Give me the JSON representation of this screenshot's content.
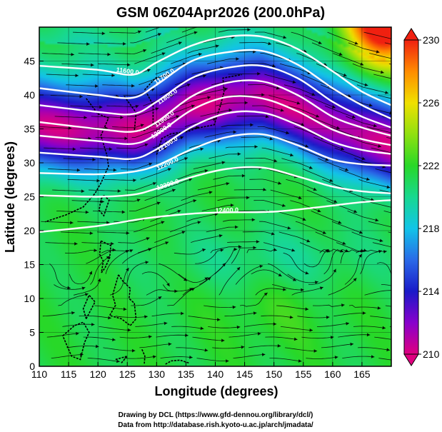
{
  "chart_data": {
    "type": "heatmap",
    "title": "GSM 06Z04Apr2026 (200.0hPa)",
    "xlabel": "Longitude (degrees)",
    "ylabel": "Latitude  (degrees)",
    "xlim": [
      110,
      170
    ],
    "ylim": [
      0,
      50
    ],
    "xticks": [
      "110",
      "115",
      "120",
      "125",
      "130",
      "135",
      "140",
      "145",
      "150",
      "155",
      "160",
      "165"
    ],
    "yticks": [
      "0",
      "5",
      "10",
      "15",
      "20",
      "25",
      "30",
      "35",
      "40",
      "45"
    ],
    "colorbar": {
      "min": 210,
      "max": 230,
      "labels": [
        "230",
        "226",
        "222",
        "218",
        "214",
        "210"
      ],
      "stops": [
        {
          "value": 210,
          "color": "#e0007f"
        },
        {
          "value": 212,
          "color": "#8800cc"
        },
        {
          "value": 214,
          "color": "#1a1ac8"
        },
        {
          "value": 216,
          "color": "#2a6ae8"
        },
        {
          "value": 218,
          "color": "#12c4e8"
        },
        {
          "value": 220,
          "color": "#18d890"
        },
        {
          "value": 222,
          "color": "#28d828"
        },
        {
          "value": 224,
          "color": "#90e010"
        },
        {
          "value": 226,
          "color": "#f0e000"
        },
        {
          "value": 228,
          "color": "#ff8c00"
        },
        {
          "value": 230,
          "color": "#f02010"
        }
      ]
    },
    "field_features": [
      {
        "name": "cold trough",
        "lon": 146,
        "lat": 40,
        "value": 213
      },
      {
        "name": "warm ridge",
        "lon": 168,
        "lat": 49,
        "value": 229
      },
      {
        "name": "tropical warm band",
        "lon": 140,
        "lat": 8,
        "value": 222
      }
    ],
    "contours": [
      {
        "label": "11600.0",
        "label_lon": 125,
        "label_lat": 43.2,
        "points": [
          [
            110,
            44.3
          ],
          [
            120,
            43.7
          ],
          [
            126,
            43.0
          ],
          [
            130,
            44.8
          ],
          [
            136,
            47.3
          ],
          [
            142,
            48.6
          ],
          [
            148,
            48.6
          ],
          [
            154,
            46.8
          ],
          [
            160,
            43.5
          ],
          [
            165,
            40.5
          ],
          [
            170,
            38.5
          ]
        ]
      },
      {
        "label": "11700.0",
        "label_lon": 131.5,
        "label_lat": 42.5,
        "points": [
          [
            110,
            41.0
          ],
          [
            120,
            40.0
          ],
          [
            126,
            39.6
          ],
          [
            130,
            41.5
          ],
          [
            136,
            45.0
          ],
          [
            142,
            46.3
          ],
          [
            148,
            46.5
          ],
          [
            154,
            44.5
          ],
          [
            160,
            41.0
          ],
          [
            165,
            38.5
          ],
          [
            170,
            36.5
          ]
        ]
      },
      {
        "label": "11800.0",
        "label_lon": 132,
        "label_lat": 39.5,
        "points": [
          [
            110,
            38.5
          ],
          [
            120,
            37.5
          ],
          [
            126,
            37.2
          ],
          [
            130,
            39.0
          ],
          [
            136,
            42.5
          ],
          [
            142,
            44.0
          ],
          [
            148,
            44.3
          ],
          [
            154,
            42.5
          ],
          [
            160,
            39.0
          ],
          [
            165,
            36.8
          ],
          [
            170,
            35.2
          ]
        ]
      },
      {
        "label": "11900.0",
        "label_lon": 131.5,
        "label_lat": 36.2,
        "points": [
          [
            110,
            36.0
          ],
          [
            120,
            35.0
          ],
          [
            126,
            34.6
          ],
          [
            130,
            36.0
          ],
          [
            136,
            39.8
          ],
          [
            142,
            41.8
          ],
          [
            148,
            42.0
          ],
          [
            154,
            40.0
          ],
          [
            160,
            36.8
          ],
          [
            165,
            35.2
          ],
          [
            170,
            34.0
          ]
        ]
      },
      {
        "label": "12000.0",
        "label_lon": 131,
        "label_lat": 34.5,
        "points": [
          [
            110,
            34.0
          ],
          [
            120,
            33.2
          ],
          [
            126,
            32.8
          ],
          [
            130,
            34.2
          ],
          [
            136,
            37.8
          ],
          [
            142,
            39.7
          ],
          [
            148,
            39.5
          ],
          [
            154,
            37.6
          ],
          [
            160,
            34.9
          ],
          [
            165,
            33.5
          ],
          [
            170,
            32.6
          ]
        ]
      },
      {
        "label": "12100.0",
        "label_lon": 132,
        "label_lat": 32.5,
        "points": [
          [
            110,
            31.5
          ],
          [
            120,
            30.9
          ],
          [
            126,
            30.6
          ],
          [
            130,
            32.0
          ],
          [
            136,
            35.3
          ],
          [
            142,
            37.3
          ],
          [
            148,
            37.4
          ],
          [
            154,
            35.6
          ],
          [
            160,
            33.1
          ],
          [
            165,
            31.9
          ],
          [
            170,
            31.3
          ]
        ]
      },
      {
        "label": "12200.0",
        "label_lon": 132,
        "label_lat": 29.6,
        "points": [
          [
            110,
            28.5
          ],
          [
            120,
            28.3
          ],
          [
            126,
            28.7
          ],
          [
            130,
            29.6
          ],
          [
            136,
            32.0
          ],
          [
            142,
            33.8
          ],
          [
            148,
            34.2
          ],
          [
            154,
            32.6
          ],
          [
            160,
            30.5
          ],
          [
            165,
            29.8
          ],
          [
            170,
            29.6
          ]
        ]
      },
      {
        "label": "12300.0",
        "label_lon": 132,
        "label_lat": 26.5,
        "points": [
          [
            110,
            25.2
          ],
          [
            120,
            25.0
          ],
          [
            126,
            25.3
          ],
          [
            130,
            26.2
          ],
          [
            136,
            27.9
          ],
          [
            142,
            29.1
          ],
          [
            148,
            29.3
          ],
          [
            154,
            28.0
          ],
          [
            160,
            26.5
          ],
          [
            165,
            25.8
          ],
          [
            170,
            25.5
          ]
        ]
      },
      {
        "label": "12400.0",
        "label_lon": 142,
        "label_lat": 22.7,
        "points": [
          [
            110,
            19.8
          ],
          [
            120,
            20.7
          ],
          [
            128,
            21.8
          ],
          [
            136,
            22.5
          ],
          [
            142,
            22.7
          ],
          [
            150,
            22.8
          ],
          [
            158,
            23.5
          ],
          [
            165,
            24.2
          ],
          [
            170,
            24.5
          ]
        ]
      }
    ]
  }
}
